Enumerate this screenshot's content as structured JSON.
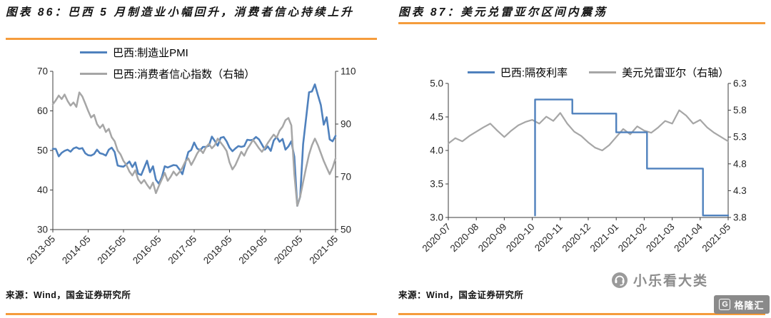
{
  "page": {
    "background": "#ffffff",
    "accent_orange": "#F59C3C",
    "axis_color": "#3d3d3d"
  },
  "left_panel": {
    "title": "图表 86：巴西 5 月制造业小幅回升，消费者信心持续上升",
    "source_label": "来源：Wind，国金证券研究所"
  },
  "right_panel": {
    "title": "图表 87：美元兑雷亚尔区间内震荡",
    "source_label": "来源：Wind，国金证券研究所"
  },
  "watermark": {
    "text": "小乐看大类",
    "logo_letter": "G",
    "logo_text": "格隆汇"
  },
  "chart_data": [
    {
      "type": "line",
      "title": "巴西 5 月制造业小幅回升，消费者信心持续上升",
      "legend_position": "top-left",
      "grid": false,
      "x": {
        "min": 0,
        "max": 96,
        "tick_values": [
          0,
          12,
          24,
          36,
          48,
          60,
          72,
          84,
          96
        ],
        "tick_labels": [
          "2013-05",
          "2014-05",
          "2015-05",
          "2016-05",
          "2017-05",
          "2018-05",
          "2019-05",
          "2020-05",
          "2021-05"
        ],
        "tick_label_rotation": -45
      },
      "left_axis": {
        "min": 30,
        "max": 70,
        "tick_values": [
          70,
          60,
          50,
          40,
          30
        ],
        "tick_labels": [
          "70",
          "60",
          "50",
          "40",
          "30"
        ]
      },
      "right_axis": {
        "min": 50,
        "max": 110,
        "tick_values": [
          110,
          90,
          70,
          50
        ],
        "tick_labels": [
          "110",
          "90",
          "70",
          "50"
        ]
      },
      "series": [
        {
          "name": "巴西:制造业PMI",
          "color": "#4f81bd",
          "width": 2.6,
          "axis": "left",
          "x_start": 0,
          "x_step": 1,
          "values": [
            50.4,
            50.4,
            48.5,
            49.4,
            49.9,
            50.2,
            49.7,
            50.5,
            50.8,
            50.4,
            50.6,
            49.3,
            48.8,
            48.7,
            49.1,
            50.2,
            49.3,
            49.1,
            48.7,
            50.2,
            50.7,
            49.6,
            46.2,
            46.0,
            45.9,
            46.5,
            47.2,
            45.8,
            47.0,
            44.1,
            43.8,
            45.6,
            47.4,
            44.5,
            46.0,
            42.6,
            41.6,
            43.2,
            46.0,
            45.7,
            46.0,
            46.3,
            46.2,
            45.2,
            44.0,
            46.9,
            49.6,
            50.1,
            52.0,
            50.5,
            50.0,
            50.9,
            50.9,
            51.2,
            53.5,
            52.4,
            51.2,
            53.2,
            53.4,
            52.3,
            50.7,
            49.8,
            50.5,
            51.1,
            50.9,
            51.1,
            52.7,
            52.6,
            52.7,
            53.4,
            52.8,
            51.5,
            50.2,
            51.0,
            49.9,
            52.5,
            53.4,
            52.2,
            52.9,
            50.2,
            51.0,
            52.3,
            48.4,
            36.0,
            38.3,
            51.6,
            58.2,
            64.7,
            64.9,
            66.7,
            64.0,
            61.5,
            56.5,
            58.4,
            52.8,
            52.3,
            53.7
          ]
        },
        {
          "name": "巴西:消费者信心指数（右轴）",
          "color": "#a6a6a6",
          "width": 2.5,
          "axis": "right",
          "x_start": 0,
          "x_step": 1,
          "values": [
            97.5,
            99.0,
            100.8,
            99.5,
            101.2,
            98.8,
            97.0,
            98.2,
            96.5,
            102.0,
            100.5,
            97.8,
            95.0,
            92.5,
            93.5,
            90.0,
            88.5,
            89.8,
            87.0,
            88.2,
            85.0,
            83.5,
            80.0,
            78.5,
            76.0,
            74.5,
            72.0,
            70.5,
            72.5,
            69.0,
            67.5,
            68.8,
            67.0,
            65.5,
            67.8,
            63.8,
            66.5,
            69.0,
            71.5,
            68.5,
            70.0,
            72.0,
            70.5,
            71.8,
            73.5,
            75.8,
            77.0,
            74.5,
            76.5,
            78.8,
            80.5,
            79.0,
            81.2,
            82.5,
            80.8,
            82.0,
            84.5,
            83.0,
            81.5,
            79.8,
            75.5,
            72.8,
            74.5,
            77.0,
            79.5,
            78.0,
            80.5,
            82.2,
            84.0,
            82.5,
            80.8,
            79.5,
            81.0,
            82.8,
            84.5,
            86.0,
            84.8,
            87.5,
            89.0,
            91.5,
            92.3,
            89.5,
            71.0,
            59.0,
            62.5,
            68.0,
            73.5,
            78.5,
            82.0,
            84.5,
            82.0,
            79.0,
            76.0,
            73.5,
            71.0,
            73.5,
            77.0
          ]
        }
      ]
    },
    {
      "type": "line",
      "title": "美元兑雷亚尔区间内震荡",
      "legend_position": "top-center",
      "grid": false,
      "x": {
        "min": 0,
        "max": 10,
        "tick_values": [
          0,
          1,
          2,
          3,
          4,
          5,
          6,
          7,
          8,
          9,
          10
        ],
        "tick_labels": [
          "2020-07",
          "2020-08",
          "2020-09",
          "2020-10",
          "2020-11",
          "2020-12",
          "2021-01",
          "2021-02",
          "2021-03",
          "2021-04",
          "2021-05"
        ],
        "tick_label_rotation": -45
      },
      "left_axis": {
        "min": 3.0,
        "max": 5.0,
        "tick_values": [
          5.0,
          4.5,
          4.0,
          3.5,
          3.0
        ],
        "tick_labels": [
          "5.0",
          "4.5",
          "4.0",
          "3.5",
          "3.0"
        ]
      },
      "right_axis": {
        "min": 3.8,
        "max": 6.3,
        "tick_values": [
          6.3,
          5.8,
          5.3,
          4.8,
          4.3,
          3.8
        ],
        "tick_labels": [
          "6.3",
          "5.8",
          "5.3",
          "4.8",
          "4.3",
          "3.8"
        ]
      },
      "series": [
        {
          "name": "美元兑雷亚尔（右轴）",
          "color": "#a6a6a6",
          "width": 2.2,
          "axis": "right",
          "x_start": 0,
          "x_step": 0.25,
          "values": [
            5.18,
            5.28,
            5.22,
            5.32,
            5.4,
            5.48,
            5.55,
            5.42,
            5.3,
            5.42,
            5.52,
            5.58,
            5.62,
            5.55,
            5.68,
            5.6,
            5.75,
            5.55,
            5.4,
            5.32,
            5.2,
            5.1,
            5.05,
            5.15,
            5.3,
            5.45,
            5.35,
            5.5,
            5.42,
            5.38,
            5.48,
            5.6,
            5.55,
            5.8,
            5.7,
            5.55,
            5.62,
            5.48,
            5.38,
            5.3,
            5.22
          ]
        },
        {
          "name": "巴西:隔夜利率",
          "color": "#4f81bd",
          "width": 2.4,
          "axis": "left",
          "points": [
            [
              3.1,
              3.03
            ],
            [
              3.1,
              4.76
            ],
            [
              4.43,
              4.76
            ],
            [
              4.43,
              4.55
            ],
            [
              6.0,
              4.55
            ],
            [
              6.0,
              4.27
            ],
            [
              7.1,
              4.27
            ],
            [
              7.1,
              3.73
            ],
            [
              9.1,
              3.73
            ],
            [
              9.1,
              3.03
            ],
            [
              10.0,
              3.03
            ]
          ]
        }
      ]
    }
  ]
}
